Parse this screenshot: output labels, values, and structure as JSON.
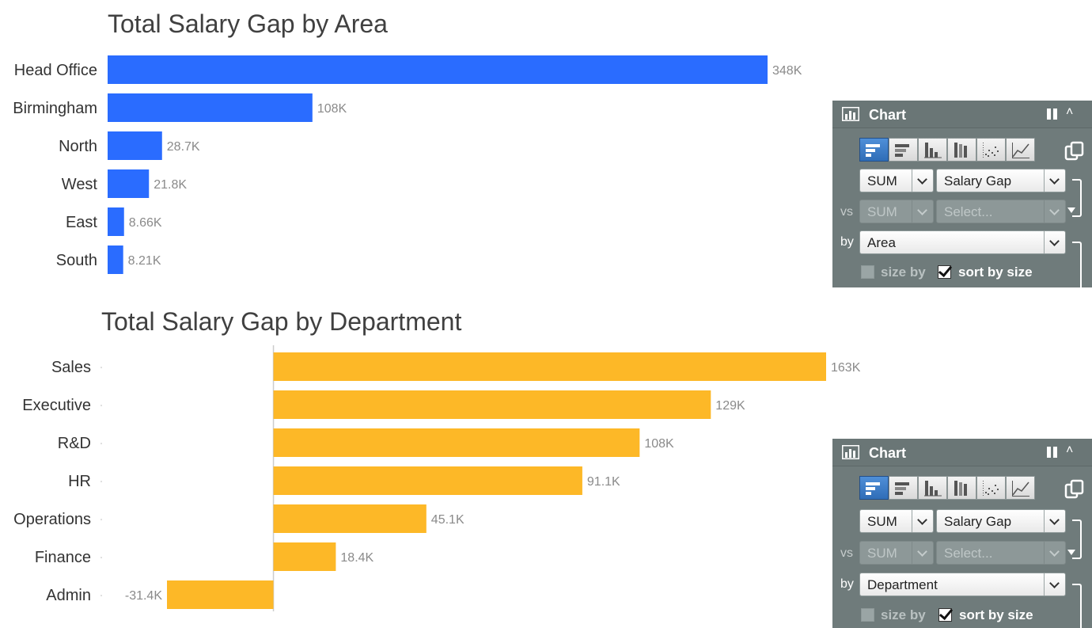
{
  "charts": {
    "area": {
      "title": "Total Salary Gap by Area"
    },
    "department": {
      "title": "Total Salary Gap by Department"
    }
  },
  "chart_data": [
    {
      "type": "bar",
      "orientation": "horizontal",
      "title": "Total Salary Gap by Area",
      "categories": [
        "Head Office",
        "Birmingham",
        "North",
        "West",
        "East",
        "South"
      ],
      "values": [
        348000,
        108000,
        28700,
        21800,
        8660,
        8210
      ],
      "value_labels": [
        "348K",
        "108K",
        "28.7K",
        "21.8K",
        "8.66K",
        "8.21K"
      ],
      "color": "#2a6cff",
      "xlim": [
        0,
        348000
      ]
    },
    {
      "type": "bar",
      "orientation": "horizontal",
      "title": "Total Salary Gap by Department",
      "categories": [
        "Sales",
        "Executive",
        "R&D",
        "HR",
        "Operations",
        "Finance",
        "Admin"
      ],
      "values": [
        163000,
        129000,
        108000,
        91100,
        45100,
        18400,
        -31400
      ],
      "value_labels": [
        "163K",
        "129K",
        "108K",
        "91.1K",
        "45.1K",
        "18.4K",
        "-31.4K"
      ],
      "color": "#fdb827",
      "xlim": [
        -31400,
        163000
      ]
    }
  ],
  "panels": [
    {
      "title": "Chart",
      "agg1": "SUM",
      "measure1": "Salary Gap",
      "vs_label": "vs",
      "agg2": "SUM",
      "measure2": "Select...",
      "by_label": "by",
      "dimension": "Area",
      "size_by": "size by",
      "sort_by": "sort by size",
      "sort_checked": true,
      "active_type": "bar-horizontal"
    },
    {
      "title": "Chart",
      "agg1": "SUM",
      "measure1": "Salary Gap",
      "vs_label": "vs",
      "agg2": "SUM",
      "measure2": "Select...",
      "by_label": "by",
      "dimension": "Department",
      "size_by": "size by",
      "sort_by": "sort by size",
      "sort_checked": true,
      "active_type": "bar-horizontal"
    }
  ],
  "chart_types": [
    "bar-horizontal-icon",
    "bar-stacked-horizontal-icon",
    "column-icon",
    "column-stacked-icon",
    "scatter-icon",
    "line-icon"
  ]
}
